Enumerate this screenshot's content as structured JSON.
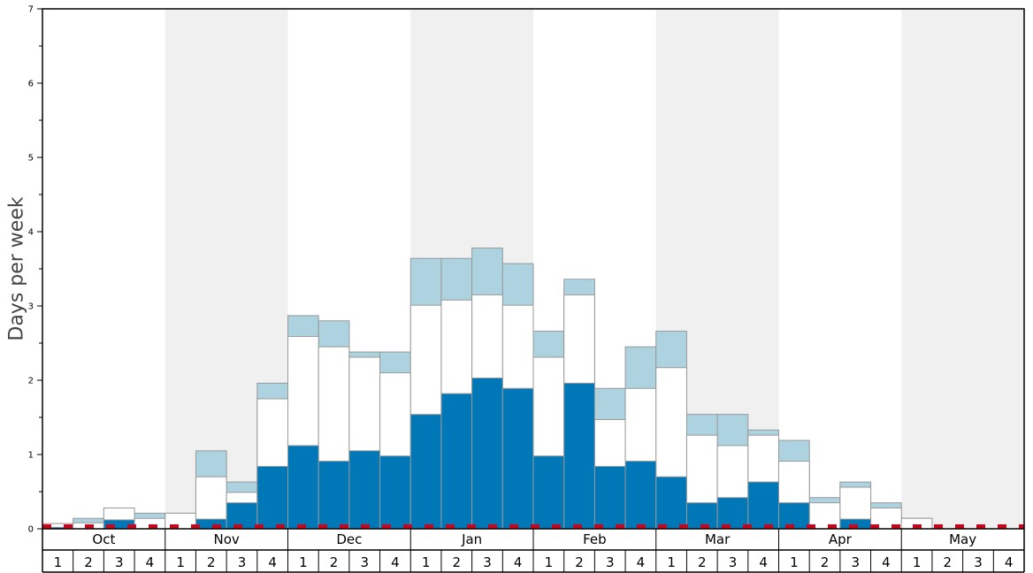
{
  "chart_data": {
    "type": "bar",
    "ylabel": "Days per week",
    "ylim": [
      0,
      7
    ],
    "yticks": [
      "0",
      "1",
      "2",
      "3",
      "4",
      "5",
      "6",
      "7"
    ],
    "months": [
      "Oct",
      "Nov",
      "Dec",
      "Jan",
      "Feb",
      "Mar",
      "Apr",
      "May"
    ],
    "week_labels": [
      "1",
      "2",
      "3",
      "4"
    ],
    "shaded_months": [
      "Nov",
      "Jan",
      "Mar",
      "May"
    ],
    "series": [
      {
        "values": [
          0.02,
          0.0,
          0.12,
          0.0,
          0.0,
          0.13,
          0.35,
          0.84,
          1.12,
          0.91,
          1.05,
          0.98,
          1.54,
          1.82,
          2.03,
          1.89,
          0.98,
          1.96,
          0.84,
          0.91,
          0.7,
          0.35,
          0.42,
          0.63,
          0.35,
          0.0,
          0.13,
          0.0,
          0.0,
          0.0,
          0.0,
          0.0
        ]
      },
      {
        "values": [
          0.07,
          0.08,
          0.28,
          0.14,
          0.21,
          0.7,
          0.49,
          1.75,
          2.59,
          2.45,
          2.31,
          2.1,
          3.01,
          3.08,
          3.15,
          3.01,
          2.31,
          3.15,
          1.47,
          1.89,
          2.17,
          1.26,
          1.12,
          1.26,
          0.91,
          0.35,
          0.56,
          0.28,
          0.14,
          0.0,
          0.0,
          0.0
        ]
      },
      {
        "values": [
          0.07,
          0.14,
          0.28,
          0.21,
          0.21,
          1.05,
          0.63,
          1.96,
          2.87,
          2.8,
          2.38,
          2.38,
          3.64,
          3.64,
          3.78,
          3.57,
          2.66,
          3.36,
          1.89,
          2.45,
          2.66,
          1.54,
          1.54,
          1.33,
          1.19,
          0.42,
          0.63,
          0.35,
          0.14,
          0.0,
          0.0,
          0.0
        ]
      }
    ],
    "colors": {
      "low": "#0077b6",
      "mid": "#ffffff",
      "high": "#add3e0",
      "shade": "#f0f0f0",
      "bar_stroke": "#999999",
      "reference_line": "#d0021b"
    },
    "reference_line": {
      "value": 0.03,
      "style": "dashed"
    },
    "grid": false
  }
}
